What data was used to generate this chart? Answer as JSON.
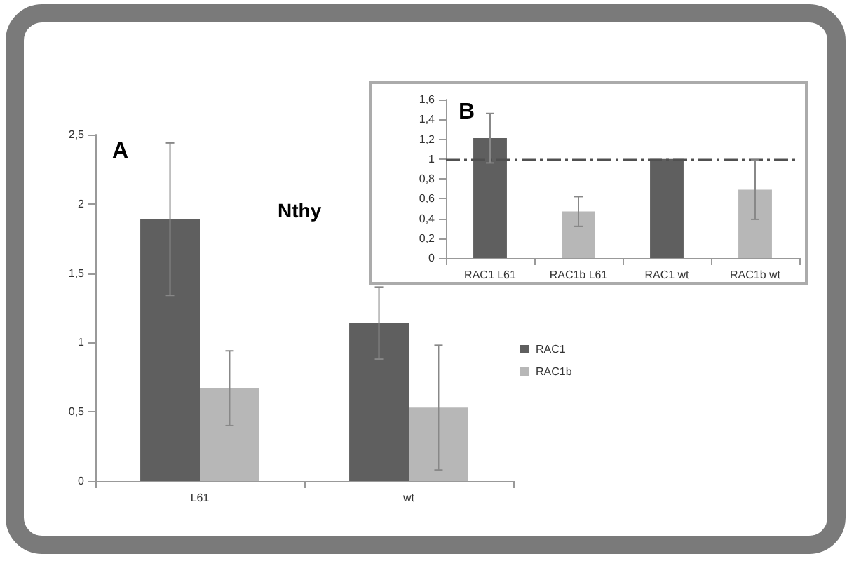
{
  "chart_data": [
    {
      "type": "bar",
      "title": "Nthy",
      "annotations": [
        "A"
      ],
      "categories": [
        "L61",
        "wt"
      ],
      "series": [
        {
          "name": "RAC1",
          "color": "#5f5f5f",
          "values": [
            1.89,
            1.14
          ],
          "errors": [
            0.55,
            0.26
          ]
        },
        {
          "name": "RAC1b",
          "color": "#b7b7b7",
          "values": [
            0.67,
            0.53
          ],
          "errors": [
            0.27,
            0.45
          ]
        }
      ],
      "ylim": [
        0,
        2.5
      ],
      "yticks": [
        0,
        {
          "value": 0.5,
          "label": "0,5"
        },
        1,
        {
          "value": 1.5,
          "label": "1,5"
        },
        2,
        {
          "value": 2.5,
          "label": "2,5"
        }
      ],
      "grid": false,
      "legend": "right"
    },
    {
      "type": "bar",
      "annotations": [
        "B"
      ],
      "categories": [
        "RAC1 L61",
        "RAC1b L61",
        "RAC1 wt",
        "RAC1b wt"
      ],
      "values": [
        1.21,
        0.47,
        1.0,
        0.69
      ],
      "colors": [
        "#5f5f5f",
        "#b7b7b7",
        "#5f5f5f",
        "#b7b7b7"
      ],
      "errors": [
        0.25,
        0.15,
        null,
        0.3
      ],
      "ylim": [
        0,
        1.6
      ],
      "yticks": [
        0,
        {
          "value": 0.2,
          "label": "0,2"
        },
        {
          "value": 0.4,
          "label": "0,4"
        },
        {
          "value": 0.6,
          "label": "0,6"
        },
        {
          "value": 0.8,
          "label": "0,8"
        },
        1,
        {
          "value": 1.2,
          "label": "1,2"
        },
        {
          "value": 1.4,
          "label": "1,4"
        },
        {
          "value": 1.6,
          "label": "1,6"
        }
      ],
      "ref_lines": [
        {
          "axis": "y",
          "value": 1,
          "color": "#505050",
          "line_style": "dashed"
        }
      ],
      "grid": false,
      "legend": false
    }
  ]
}
